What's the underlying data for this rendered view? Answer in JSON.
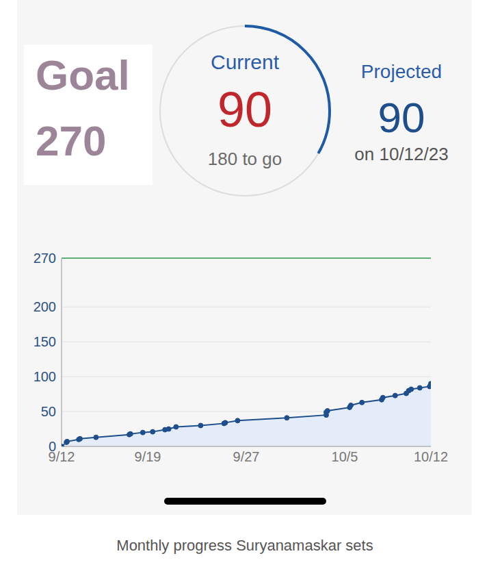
{
  "header": {
    "goal_label": "Goal",
    "goal": 270,
    "current_label": "Current",
    "current": 90,
    "remaining_text": "180 to go",
    "projected_label": "Projected",
    "projected": 90,
    "projected_date": "on 10/12/23"
  },
  "chart_data": {
    "type": "area",
    "x": [
      0,
      0.4,
      0.45,
      1.4,
      1.5,
      2.8,
      5.5,
      5.6,
      6.6,
      7.4,
      8.4,
      8.7,
      9.3,
      11.3,
      13.2,
      13.3,
      14.3,
      18.3,
      21.5,
      21.5,
      21.6,
      23.4,
      23.5,
      24.4,
      26.0,
      26.1,
      27.1,
      28.0,
      28.2,
      28.4,
      29.1,
      29.9,
      30
    ],
    "values": [
      0,
      6,
      7,
      10,
      11,
      13,
      17,
      18,
      20,
      21,
      24,
      25,
      28,
      30,
      33,
      34,
      37,
      41,
      45,
      49,
      51,
      56,
      59,
      63,
      67,
      70,
      73,
      76,
      80,
      82,
      84,
      86,
      90
    ],
    "color": "#1f4e8c",
    "marker": "circle",
    "xlim": [
      0,
      30
    ],
    "xticks": [
      {
        "value": 0,
        "label": "9/12"
      },
      {
        "value": 7,
        "label": "9/19"
      },
      {
        "value": 15,
        "label": "9/27"
      },
      {
        "value": 23,
        "label": "10/5"
      },
      {
        "value": 30,
        "label": "10/12"
      }
    ],
    "ylim": [
      0,
      270
    ],
    "yticks": [
      0,
      50,
      100,
      150,
      200,
      270
    ],
    "grid": true,
    "goal_line": {
      "value": 270,
      "color": "#5cb176"
    }
  },
  "caption": "Monthly progress Suryanamaskar sets"
}
